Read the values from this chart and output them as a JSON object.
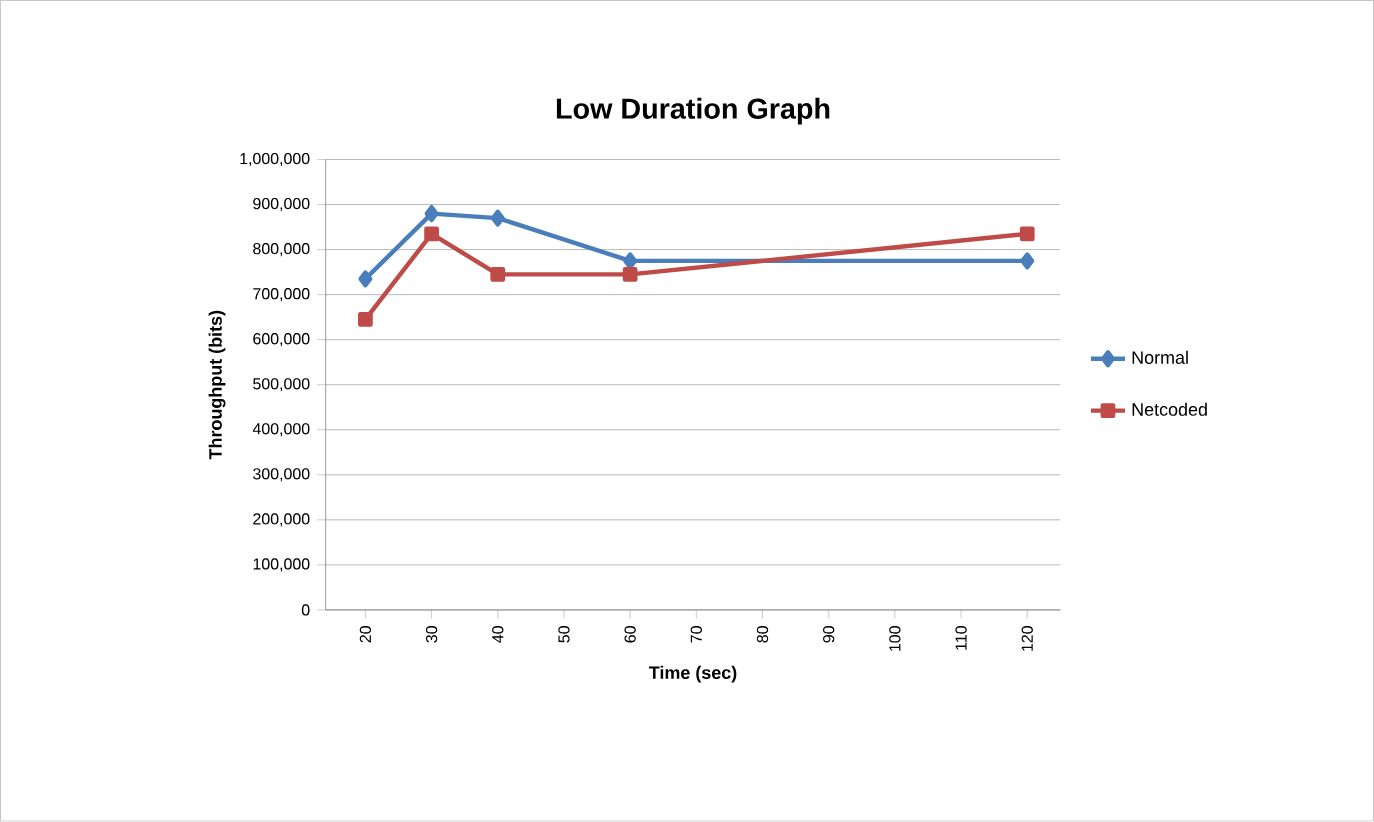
{
  "chart_data": {
    "type": "line",
    "title": "Low Duration Graph",
    "xlabel": "Time (sec)",
    "ylabel": "Throughput (bits)",
    "x": [
      20,
      30,
      40,
      60,
      120
    ],
    "series": [
      {
        "name": "Normal",
        "color": "#4a7ebb",
        "marker": "diamond",
        "values": [
          735000,
          880000,
          870000,
          775000,
          775000
        ]
      },
      {
        "name": "Netcoded",
        "color": "#be4b48",
        "marker": "square",
        "values": [
          645000,
          835000,
          745000,
          745000,
          835000
        ]
      }
    ],
    "xlim": [
      14,
      125
    ],
    "xticks": [
      20,
      30,
      40,
      50,
      60,
      70,
      80,
      90,
      100,
      110,
      120
    ],
    "ylim": [
      0,
      1000000
    ],
    "yticks": [
      {
        "value": 0,
        "label": "0"
      },
      {
        "value": 100000,
        "label": "100,000"
      },
      {
        "value": 200000,
        "label": "200,000"
      },
      {
        "value": 300000,
        "label": "300,000"
      },
      {
        "value": 400000,
        "label": "400,000"
      },
      {
        "value": 500000,
        "label": "500,000"
      },
      {
        "value": 600000,
        "label": "600,000"
      },
      {
        "value": 700000,
        "label": "700,000"
      },
      {
        "value": 800000,
        "label": "800,000"
      },
      {
        "value": 900000,
        "label": "900,000"
      },
      {
        "value": 1000000,
        "label": "1,000,000"
      }
    ],
    "grid": "y",
    "legend": "right",
    "line_style": "solid"
  }
}
